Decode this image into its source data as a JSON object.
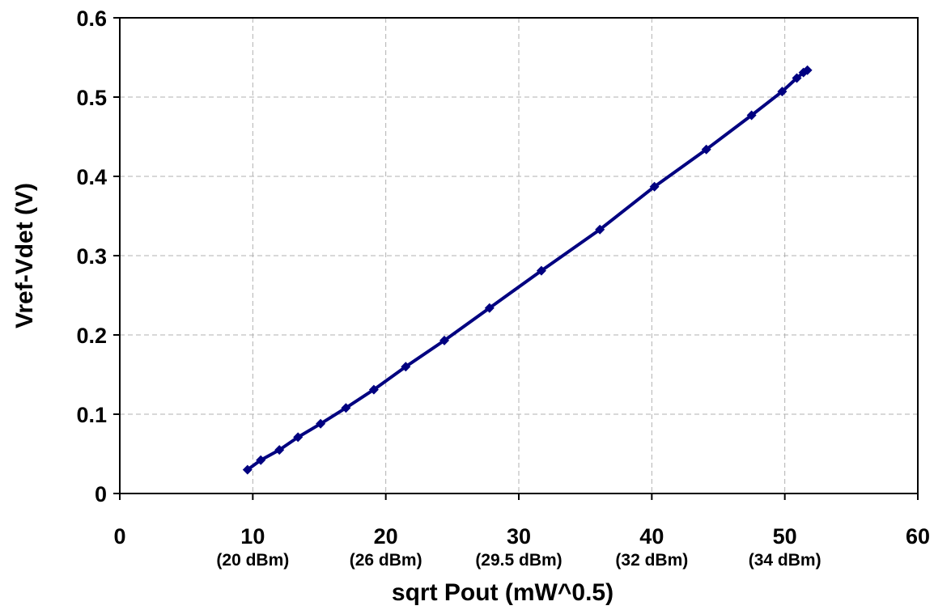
{
  "chart_data": {
    "type": "line",
    "title": "",
    "xlabel": "sqrt Pout (mW^0.5)",
    "ylabel": "Vref-Vdet (V)",
    "xlim": [
      0,
      60
    ],
    "ylim": [
      0,
      0.6
    ],
    "x_ticks": [
      {
        "value": 0,
        "label": "0",
        "sublabel": ""
      },
      {
        "value": 10,
        "label": "10",
        "sublabel": "(20 dBm)"
      },
      {
        "value": 20,
        "label": "20",
        "sublabel": "(26 dBm)"
      },
      {
        "value": 30,
        "label": "30",
        "sublabel": "(29.5 dBm)"
      },
      {
        "value": 40,
        "label": "40",
        "sublabel": "(32 dBm)"
      },
      {
        "value": 50,
        "label": "50",
        "sublabel": "(34 dBm)"
      },
      {
        "value": 60,
        "label": "60",
        "sublabel": ""
      }
    ],
    "y_ticks": [
      {
        "value": 0,
        "label": "0"
      },
      {
        "value": 0.1,
        "label": "0.1"
      },
      {
        "value": 0.2,
        "label": "0.2"
      },
      {
        "value": 0.3,
        "label": "0.3"
      },
      {
        "value": 0.4,
        "label": "0.4"
      },
      {
        "value": 0.5,
        "label": "0.5"
      },
      {
        "value": 0.6,
        "label": "0.6"
      }
    ],
    "grid": true,
    "legend": "none",
    "series": [
      {
        "color": "#000080",
        "marker": "diamond",
        "x": [
          9.6,
          10.6,
          12.0,
          13.4,
          15.1,
          17.0,
          19.1,
          21.5,
          24.4,
          27.8,
          31.7,
          36.1,
          40.2,
          44.1,
          47.5,
          49.8,
          50.9,
          51.4,
          51.7
        ],
        "y": [
          0.03,
          0.042,
          0.055,
          0.071,
          0.088,
          0.108,
          0.131,
          0.16,
          0.193,
          0.234,
          0.281,
          0.333,
          0.387,
          0.434,
          0.477,
          0.507,
          0.524,
          0.531,
          0.534
        ]
      }
    ]
  }
}
